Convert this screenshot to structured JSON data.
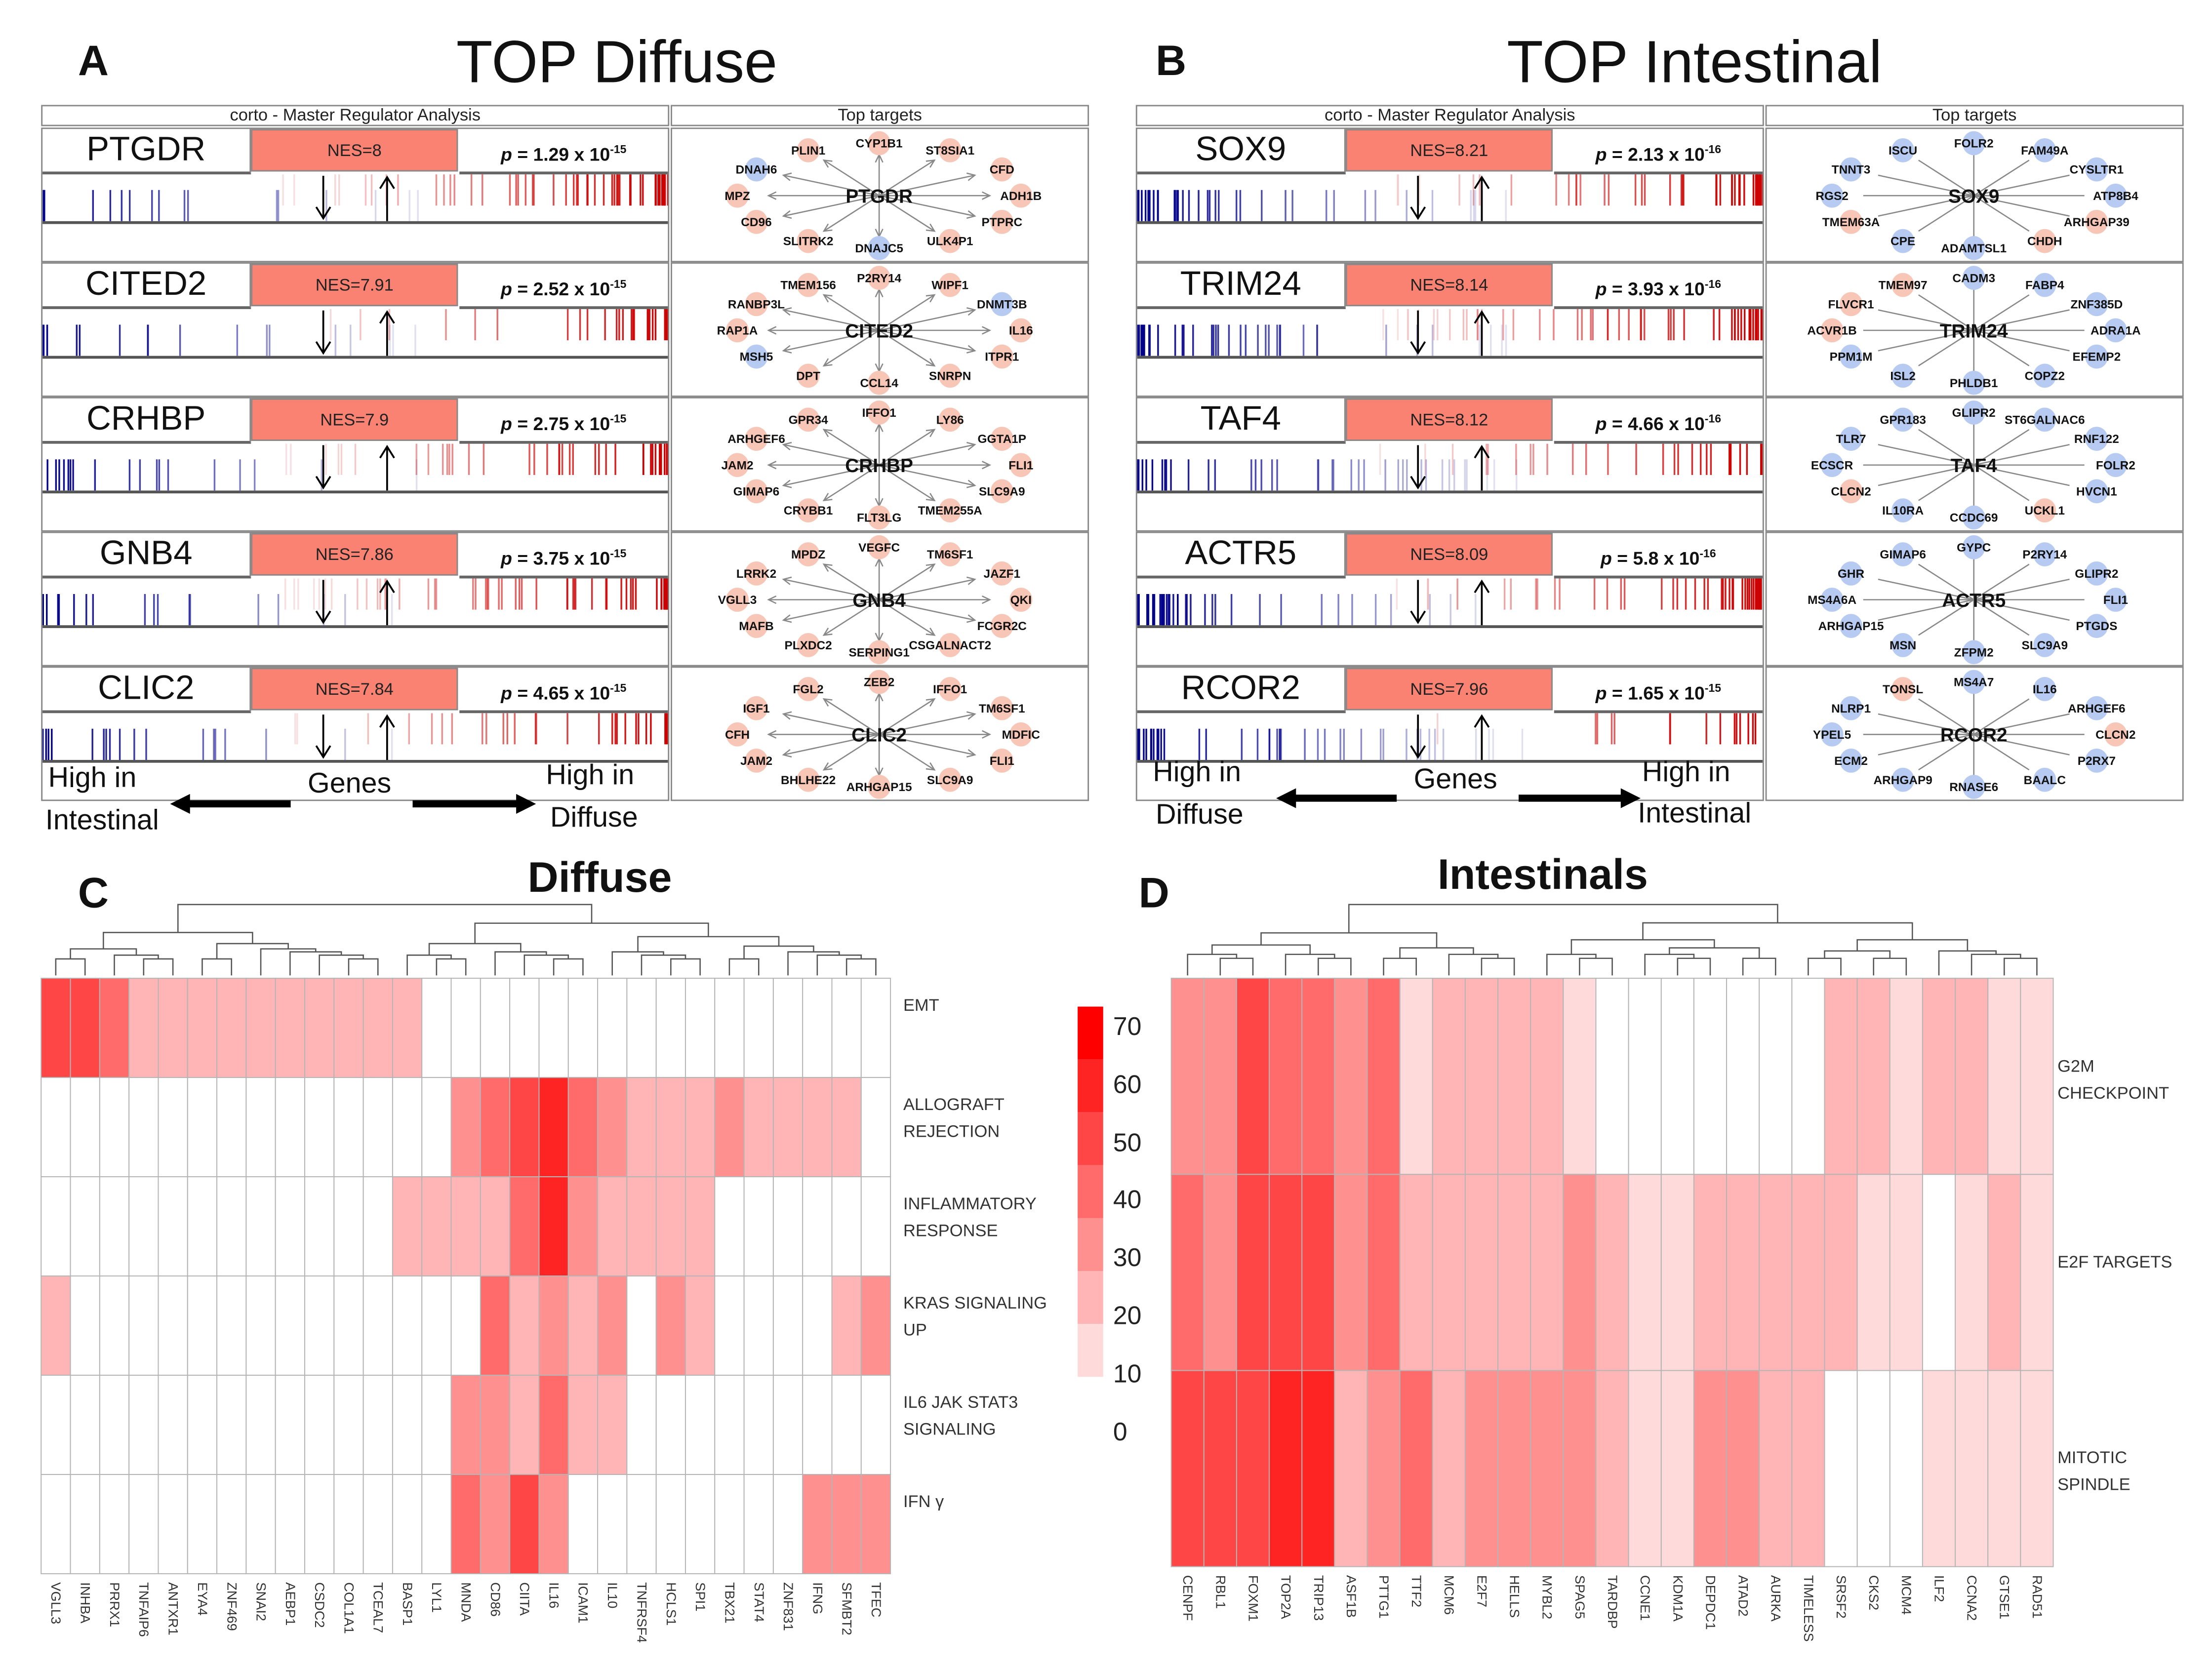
{
  "panels": [
    {
      "letter": "A",
      "title": "TOP Diffuse",
      "header_left": "corto - Master Regulator Analysis",
      "header_right": "Top targets",
      "p_symbol": "p",
      "regulators": [
        {
          "name": "PTGDR",
          "nes": "NES=8",
          "p_value": " = 1.29 x 10",
          "p_exp": "-15",
          "targets": [
            {
              "name": "CYP1B1",
              "dir": "up"
            },
            {
              "name": "ST8SIA1",
              "dir": "up"
            },
            {
              "name": "CFD",
              "dir": "up"
            },
            {
              "name": "ADH1B",
              "dir": "up"
            },
            {
              "name": "PTPRC",
              "dir": "up"
            },
            {
              "name": "ULK4P1",
              "dir": "up"
            },
            {
              "name": "DNAJC5",
              "dir": "down"
            },
            {
              "name": "SLITRK2",
              "dir": "up"
            },
            {
              "name": "CD96",
              "dir": "up"
            },
            {
              "name": "MPZ",
              "dir": "up"
            },
            {
              "name": "DNAH6",
              "dir": "down"
            },
            {
              "name": "PLIN1",
              "dir": "up"
            }
          ]
        },
        {
          "name": "CITED2",
          "nes": "NES=7.91",
          "p_value": " = 2.52 x 10",
          "p_exp": "-15",
          "targets": [
            {
              "name": "P2RY14",
              "dir": "up"
            },
            {
              "name": "WIPF1",
              "dir": "up"
            },
            {
              "name": "DNMT3B",
              "dir": "down"
            },
            {
              "name": "IL16",
              "dir": "up"
            },
            {
              "name": "ITPR1",
              "dir": "up"
            },
            {
              "name": "SNRPN",
              "dir": "up"
            },
            {
              "name": "CCL14",
              "dir": "up"
            },
            {
              "name": "DPT",
              "dir": "up"
            },
            {
              "name": "MSH5",
              "dir": "down"
            },
            {
              "name": "RAP1A",
              "dir": "up"
            },
            {
              "name": "RANBP3L",
              "dir": "up"
            },
            {
              "name": "TMEM156",
              "dir": "up"
            }
          ]
        },
        {
          "name": "CRHBP",
          "nes": "NES=7.9",
          "p_value": " = 2.75 x 10",
          "p_exp": "-15",
          "targets": [
            {
              "name": "IFFO1",
              "dir": "up"
            },
            {
              "name": "LY86",
              "dir": "up"
            },
            {
              "name": "GGTA1P",
              "dir": "up"
            },
            {
              "name": "FLI1",
              "dir": "up"
            },
            {
              "name": "SLC9A9",
              "dir": "up"
            },
            {
              "name": "TMEM255A",
              "dir": "up"
            },
            {
              "name": "FLT3LG",
              "dir": "up"
            },
            {
              "name": "CRYBB1",
              "dir": "up"
            },
            {
              "name": "GIMAP6",
              "dir": "up"
            },
            {
              "name": "JAM2",
              "dir": "up"
            },
            {
              "name": "ARHGEF6",
              "dir": "up"
            },
            {
              "name": "GPR34",
              "dir": "up"
            }
          ]
        },
        {
          "name": "GNB4",
          "nes": "NES=7.86",
          "p_value": " = 3.75 x 10",
          "p_exp": "-15",
          "targets": [
            {
              "name": "VEGFC",
              "dir": "up"
            },
            {
              "name": "TM6SF1",
              "dir": "up"
            },
            {
              "name": "JAZF1",
              "dir": "up"
            },
            {
              "name": "QKI",
              "dir": "up"
            },
            {
              "name": "FCGR2C",
              "dir": "up"
            },
            {
              "name": "CSGALNACT2",
              "dir": "up"
            },
            {
              "name": "SERPING1",
              "dir": "up"
            },
            {
              "name": "PLXDC2",
              "dir": "up"
            },
            {
              "name": "MAFB",
              "dir": "up"
            },
            {
              "name": "VGLL3",
              "dir": "up"
            },
            {
              "name": "LRRK2",
              "dir": "up"
            },
            {
              "name": "MPDZ",
              "dir": "up"
            }
          ]
        },
        {
          "name": "CLIC2",
          "nes": "NES=7.84",
          "p_value": " = 4.65 x 10",
          "p_exp": "-15",
          "targets": [
            {
              "name": "ZEB2",
              "dir": "up"
            },
            {
              "name": "IFFO1",
              "dir": "up"
            },
            {
              "name": "TM6SF1",
              "dir": "up"
            },
            {
              "name": "MDFIC",
              "dir": "up"
            },
            {
              "name": "FLI1",
              "dir": "up"
            },
            {
              "name": "SLC9A9",
              "dir": "up"
            },
            {
              "name": "ARHGAP15",
              "dir": "up"
            },
            {
              "name": "BHLHE22",
              "dir": "up"
            },
            {
              "name": "JAM2",
              "dir": "up"
            },
            {
              "name": "CFH",
              "dir": "up"
            },
            {
              "name": "IGF1",
              "dir": "up"
            },
            {
              "name": "FGL2",
              "dir": "up"
            }
          ]
        }
      ],
      "footer": {
        "left_line1": "High in",
        "left_line2": "Intestinal",
        "center": "Genes",
        "right_line1": "High in",
        "right_line2": "Diffuse"
      }
    },
    {
      "letter": "B",
      "title": "TOP Intestinal",
      "header_left": "corto - Master Regulator Analysis",
      "header_right": "Top targets",
      "p_symbol": "p",
      "regulators": [
        {
          "name": "SOX9",
          "nes": "NES=8.21",
          "p_value": " = 2.13 x 10",
          "p_exp": "-16",
          "targets": [
            {
              "name": "FOLR2",
              "dir": "down"
            },
            {
              "name": "FAM49A",
              "dir": "down"
            },
            {
              "name": "CYSLTR1",
              "dir": "down"
            },
            {
              "name": "ATP8B4",
              "dir": "down"
            },
            {
              "name": "ARHGAP39",
              "dir": "up"
            },
            {
              "name": "CHDH",
              "dir": "up"
            },
            {
              "name": "ADAMTSL1",
              "dir": "down"
            },
            {
              "name": "CPE",
              "dir": "down"
            },
            {
              "name": "TMEM63A",
              "dir": "up"
            },
            {
              "name": "RGS2",
              "dir": "down"
            },
            {
              "name": "TNNT3",
              "dir": "down"
            },
            {
              "name": "ISCU",
              "dir": "down"
            }
          ]
        },
        {
          "name": "TRIM24",
          "nes": "NES=8.14",
          "p_value": " = 3.93 x 10",
          "p_exp": "-16",
          "targets": [
            {
              "name": "CADM3",
              "dir": "down"
            },
            {
              "name": "FABP4",
              "dir": "down"
            },
            {
              "name": "ZNF385D",
              "dir": "down"
            },
            {
              "name": "ADRA1A",
              "dir": "down"
            },
            {
              "name": "EFEMP2",
              "dir": "down"
            },
            {
              "name": "COPZ2",
              "dir": "down"
            },
            {
              "name": "PHLDB1",
              "dir": "down"
            },
            {
              "name": "ISL2",
              "dir": "down"
            },
            {
              "name": "PPM1M",
              "dir": "down"
            },
            {
              "name": "ACVR1B",
              "dir": "up"
            },
            {
              "name": "FLVCR1",
              "dir": "up"
            },
            {
              "name": "TMEM97",
              "dir": "up"
            }
          ]
        },
        {
          "name": "TAF4",
          "nes": "NES=8.12",
          "p_value": " = 4.66 x 10",
          "p_exp": "-16",
          "targets": [
            {
              "name": "GLIPR2",
              "dir": "down"
            },
            {
              "name": "ST6GALNAC6",
              "dir": "down"
            },
            {
              "name": "RNF122",
              "dir": "down"
            },
            {
              "name": "FOLR2",
              "dir": "down"
            },
            {
              "name": "HVCN1",
              "dir": "down"
            },
            {
              "name": "UCKL1",
              "dir": "up"
            },
            {
              "name": "CCDC69",
              "dir": "down"
            },
            {
              "name": "IL10RA",
              "dir": "down"
            },
            {
              "name": "CLCN2",
              "dir": "up"
            },
            {
              "name": "ECSCR",
              "dir": "down"
            },
            {
              "name": "TLR7",
              "dir": "down"
            },
            {
              "name": "GPR183",
              "dir": "down"
            }
          ]
        },
        {
          "name": "ACTR5",
          "nes": "NES=8.09",
          "p_value": " = 5.8 x 10",
          "p_exp": "-16",
          "targets": [
            {
              "name": "GYPC",
              "dir": "down"
            },
            {
              "name": "P2RY14",
              "dir": "down"
            },
            {
              "name": "GLIPR2",
              "dir": "down"
            },
            {
              "name": "FLI1",
              "dir": "down"
            },
            {
              "name": "PTGDS",
              "dir": "down"
            },
            {
              "name": "SLC9A9",
              "dir": "down"
            },
            {
              "name": "ZFPM2",
              "dir": "down"
            },
            {
              "name": "MSN",
              "dir": "down"
            },
            {
              "name": "ARHGAP15",
              "dir": "down"
            },
            {
              "name": "MS4A6A",
              "dir": "down"
            },
            {
              "name": "GHR",
              "dir": "down"
            },
            {
              "name": "GIMAP6",
              "dir": "down"
            }
          ]
        },
        {
          "name": "RCOR2",
          "nes": "NES=7.96",
          "p_value": " = 1.65 x 10",
          "p_exp": "-15",
          "targets": [
            {
              "name": "MS4A7",
              "dir": "down"
            },
            {
              "name": "IL16",
              "dir": "down"
            },
            {
              "name": "ARHGEF6",
              "dir": "down"
            },
            {
              "name": "CLCN2",
              "dir": "up"
            },
            {
              "name": "P2RX7",
              "dir": "down"
            },
            {
              "name": "BAALC",
              "dir": "down"
            },
            {
              "name": "RNASE6",
              "dir": "down"
            },
            {
              "name": "ARHGAP9",
              "dir": "down"
            },
            {
              "name": "ECM2",
              "dir": "down"
            },
            {
              "name": "YPEL5",
              "dir": "down"
            },
            {
              "name": "NLRP1",
              "dir": "down"
            },
            {
              "name": "TONSL",
              "dir": "up"
            }
          ]
        }
      ],
      "footer": {
        "left_line1": "High in",
        "left_line2": "Diffuse",
        "center": "Genes",
        "right_line1": "High in",
        "right_line2": "Intestinal"
      }
    }
  ],
  "colors": {
    "up_node": "#f8c6b6",
    "down_node": "#b7cbf2",
    "nes_box": "#f98272",
    "tick_up": "#cc0000",
    "tick_down": "#00008b"
  },
  "chart_data": [
    {
      "type": "heatmap",
      "letter": "C",
      "title": "Diffuse",
      "columns": [
        "VGLL3",
        "INHBA",
        "PRRX1",
        "TNFAIP6",
        "ANTXR1",
        "EYA4",
        "ZNF469",
        "SNAI2",
        "AEBP1",
        "CSDC2",
        "COL1A1",
        "TCEAL7",
        "BASP1",
        "LYL1",
        "MNDA",
        "CD86",
        "CIITA",
        "IL16",
        "ICAM1",
        "IL10",
        "TNFRSF4",
        "HCLS1",
        "SPI1",
        "TBX21",
        "STAT4",
        "ZNF831",
        "IFNG",
        "SFMBT2",
        "TFEC"
      ],
      "rows": [
        "EMT",
        "ALLOGRAFT REJECTION",
        "INFLAMMATORY RESPONSE",
        "KRAS SIGNALING UP",
        "IL6 JAK STAT3 SIGNALING",
        "IFN γ"
      ],
      "values": [
        [
          50,
          50,
          40,
          20,
          20,
          20,
          20,
          20,
          20,
          20,
          20,
          20,
          20,
          0,
          0,
          0,
          0,
          0,
          0,
          0,
          0,
          0,
          0,
          0,
          0,
          0,
          0,
          0,
          0
        ],
        [
          0,
          0,
          0,
          0,
          0,
          0,
          0,
          0,
          0,
          0,
          0,
          0,
          0,
          0,
          30,
          40,
          50,
          60,
          40,
          30,
          20,
          20,
          20,
          30,
          20,
          20,
          20,
          20,
          0
        ],
        [
          0,
          0,
          0,
          0,
          0,
          0,
          0,
          0,
          0,
          0,
          0,
          0,
          20,
          20,
          20,
          20,
          40,
          60,
          30,
          20,
          20,
          20,
          20,
          0,
          0,
          0,
          0,
          0,
          0
        ],
        [
          20,
          0,
          0,
          0,
          0,
          0,
          0,
          0,
          0,
          0,
          0,
          0,
          0,
          0,
          0,
          40,
          20,
          30,
          20,
          30,
          0,
          30,
          20,
          0,
          0,
          0,
          0,
          20,
          30
        ],
        [
          0,
          0,
          0,
          0,
          0,
          0,
          0,
          0,
          0,
          0,
          0,
          0,
          0,
          0,
          30,
          30,
          20,
          40,
          20,
          20,
          0,
          0,
          0,
          0,
          0,
          0,
          0,
          0,
          0
        ],
        [
          0,
          0,
          0,
          0,
          0,
          0,
          0,
          0,
          0,
          0,
          0,
          0,
          0,
          0,
          40,
          30,
          50,
          30,
          0,
          0,
          0,
          0,
          0,
          0,
          0,
          0,
          30,
          30,
          30
        ]
      ]
    },
    {
      "type": "heatmap",
      "letter": "D",
      "title": "Intestinals",
      "columns": [
        "CENPF",
        "RBL1",
        "FOXM1",
        "TOP2A",
        "TRIP13",
        "ASF1B",
        "PTTG1",
        "TTF2",
        "MCM6",
        "E2F7",
        "HELLS",
        "MYBL2",
        "SPAG5",
        "TARDBP",
        "CCNE1",
        "KDM1A",
        "DEPDC1",
        "ATAD2",
        "AURKA",
        "TIMELESS",
        "SRSF2",
        "CKS2",
        "MCM4",
        "ILF2",
        "CCNA2",
        "GTSE1",
        "RAD51"
      ],
      "rows": [
        "G2M CHECKPOINT",
        "E2F TARGETS",
        "MITOTIC SPINDLE"
      ],
      "values": [
        [
          30,
          30,
          50,
          40,
          40,
          30,
          40,
          10,
          20,
          20,
          20,
          20,
          10,
          0,
          0,
          0,
          0,
          0,
          0,
          0,
          20,
          20,
          10,
          20,
          20,
          10,
          10
        ],
        [
          40,
          30,
          50,
          50,
          50,
          30,
          40,
          20,
          20,
          20,
          20,
          20,
          30,
          20,
          10,
          10,
          20,
          20,
          20,
          20,
          20,
          10,
          10,
          0,
          10,
          20,
          10
        ],
        [
          50,
          50,
          50,
          60,
          60,
          20,
          30,
          40,
          20,
          30,
          30,
          30,
          30,
          20,
          10,
          10,
          30,
          30,
          20,
          20,
          0,
          0,
          0,
          10,
          10,
          10,
          10
        ]
      ]
    }
  ],
  "color_legend": {
    "ticks": [
      "70",
      "60",
      "50",
      "40",
      "30",
      "20",
      "10",
      "0"
    ],
    "levels": [
      70,
      60,
      50,
      40,
      30,
      20,
      10
    ]
  }
}
